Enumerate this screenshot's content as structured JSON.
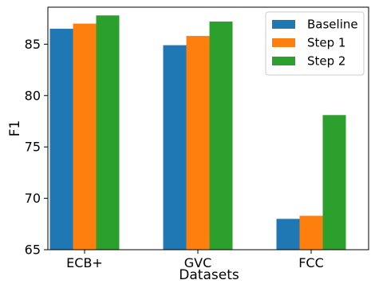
{
  "chart_data": {
    "type": "bar",
    "title": "",
    "xlabel": "Datasets",
    "ylabel": "F1",
    "categories": [
      "ECB+",
      "GVC",
      "FCC"
    ],
    "series": [
      {
        "name": "Baseline",
        "color": "#1f77b4",
        "values": [
          86.5,
          84.9,
          68.0
        ]
      },
      {
        "name": "Step 1",
        "color": "#ff7f0e",
        "values": [
          87.0,
          85.8,
          68.3
        ]
      },
      {
        "name": "Step 2",
        "color": "#2ca02c",
        "values": [
          87.8,
          87.2,
          78.1
        ]
      }
    ],
    "ylim": [
      65,
      88.6
    ],
    "yticks": [
      65,
      70,
      75,
      80,
      85
    ],
    "legend_position": "top-right",
    "grid": false
  }
}
